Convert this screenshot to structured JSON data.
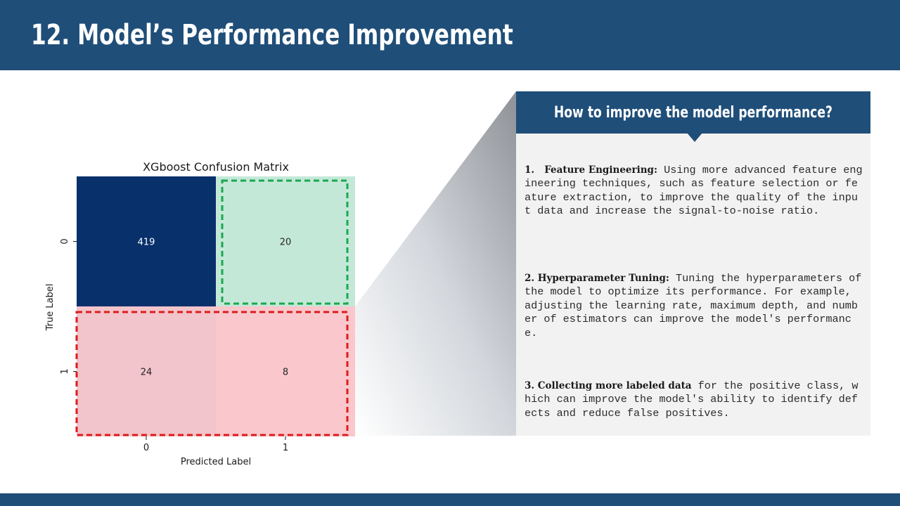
{
  "slide": {
    "title": "12. Model’s Performance Improvement"
  },
  "chart_data": {
    "type": "heatmap",
    "title": "XGboost Confusion Matrix",
    "xlabel": "Predicted Label",
    "ylabel": "True Label",
    "x_ticks": [
      "0",
      "1"
    ],
    "y_ticks": [
      "0",
      "1"
    ],
    "matrix": [
      [
        419,
        20
      ],
      [
        24,
        8
      ]
    ],
    "colormap": [
      "#08306b",
      "#c4e8d8",
      "#f2c4cb",
      "#f9c7cc"
    ],
    "highlights": [
      {
        "cells": [
          [
            0,
            1
          ]
        ],
        "color": "#1aa850",
        "style": "dashed"
      },
      {
        "cells": [
          [
            1,
            0
          ],
          [
            1,
            1
          ]
        ],
        "color": "#dd1b1b",
        "style": "dashed"
      }
    ]
  },
  "panel": {
    "title": "How to improve the model performance?",
    "tips": [
      {
        "heading": "1.   Feature Engineering:",
        "text": " Using more advanced feature engineering techniques, such as feature selection or feature extraction, to improve the quality of the input data and increase the signal-to-noise ratio."
      },
      {
        "heading": "2. Hyperparameter Tuning:",
        "text": " Tuning the hyperparameters of the model to optimize its performance. For example, adjusting the learning rate, maximum depth, and number of estimators can improve the model's performance."
      },
      {
        "heading": "3. Collecting more labeled data",
        "text": " for the positive class, which can improve the model's ability to identify defects and reduce false positives."
      }
    ]
  },
  "colors": {
    "header": "#1f4e79",
    "panel_background": "#f2f2f2"
  }
}
